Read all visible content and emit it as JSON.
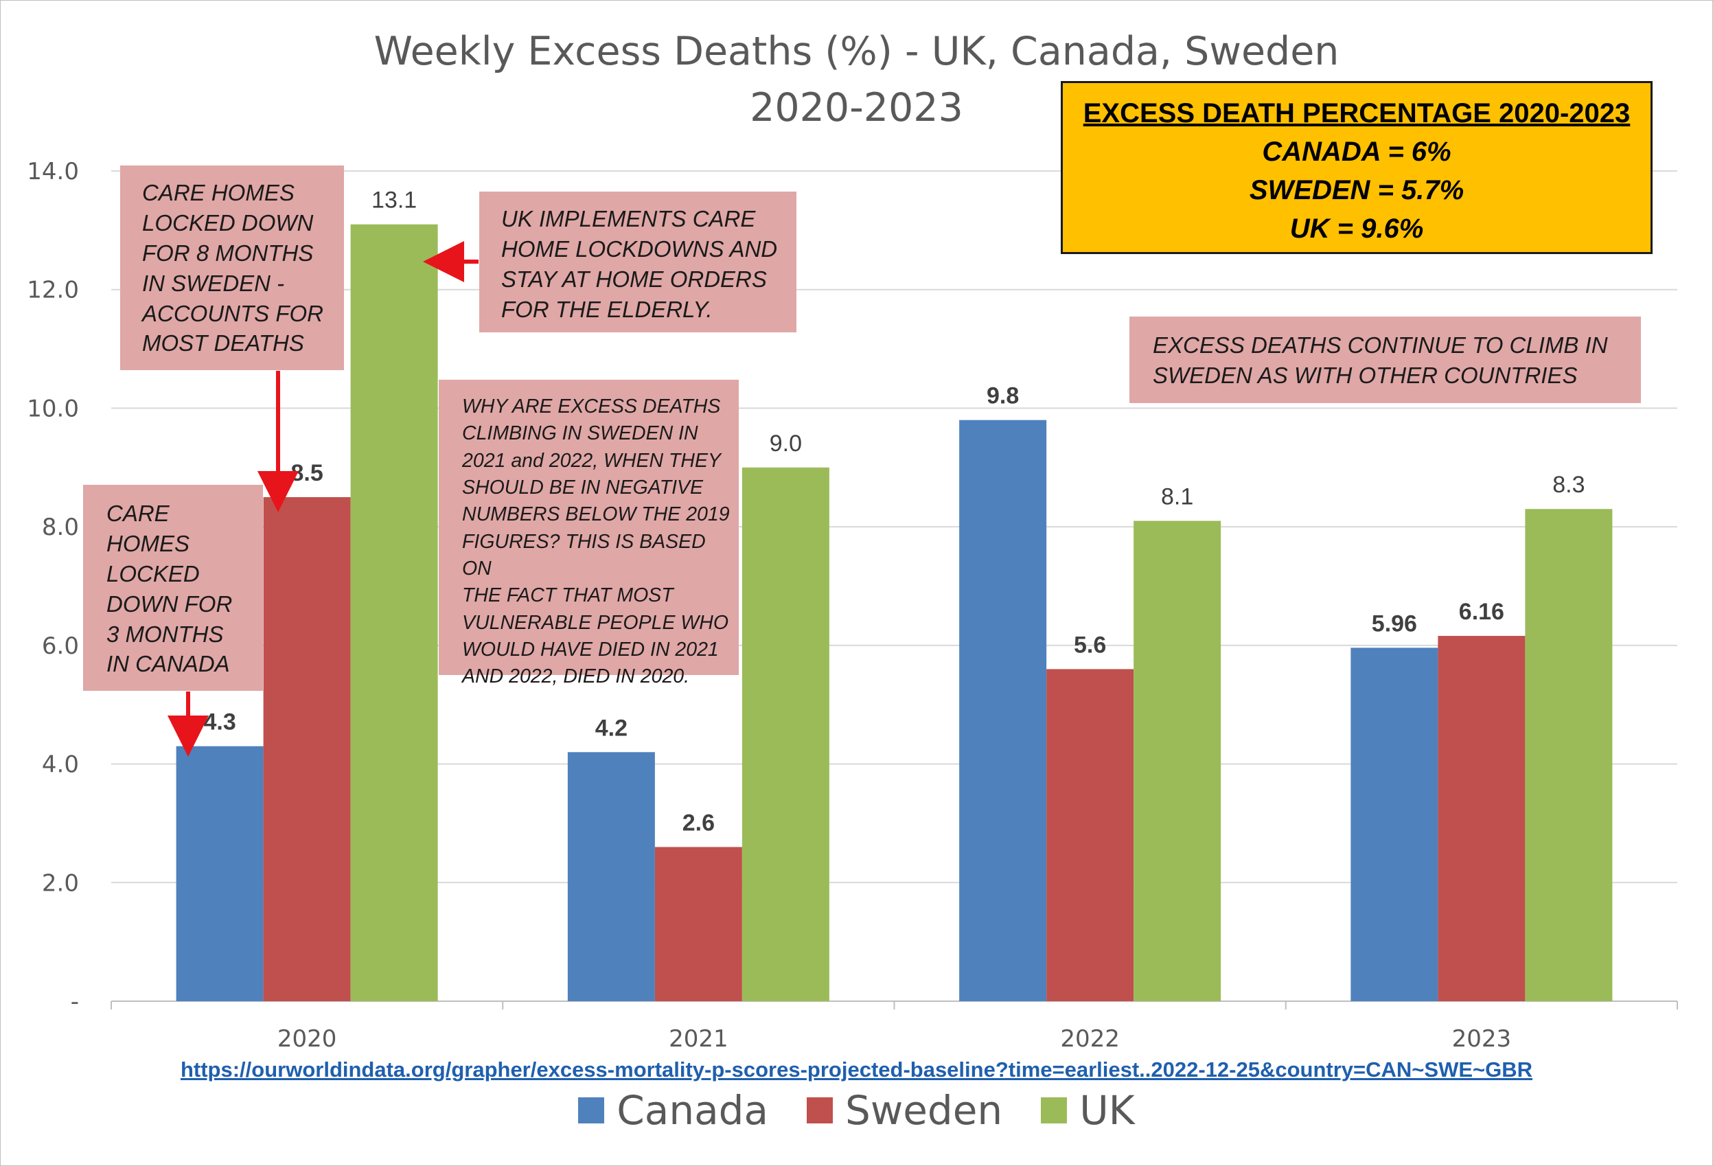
{
  "chart_data": {
    "type": "bar",
    "title": "Weekly Excess Deaths (%) -  UK, Canada, Sweden",
    "subtitle": "2020-2023",
    "categories": [
      "2020",
      "2021",
      "2022",
      "2023"
    ],
    "series": [
      {
        "name": "Canada",
        "color": "#4f81bd",
        "values": [
          4.3,
          4.2,
          9.8,
          5.96
        ],
        "labels": [
          "4.3",
          "4.2",
          "9.8",
          "5.96"
        ],
        "label_bold": true
      },
      {
        "name": "Sweden",
        "color": "#c0504d",
        "values": [
          8.5,
          2.6,
          5.6,
          6.16
        ],
        "labels": [
          "8.5",
          "2.6",
          "5.6",
          "6.16"
        ],
        "label_bold": true
      },
      {
        "name": "UK",
        "color": "#9bbb59",
        "values": [
          13.1,
          9.0,
          8.1,
          8.3
        ],
        "labels": [
          "13.1",
          "9.0",
          "8.1",
          "8.3"
        ],
        "label_bold": false
      }
    ],
    "yticks": [
      "-",
      "2.0",
      "4.0",
      "6.0",
      "8.0",
      "10.0",
      "12.0",
      "14.0"
    ],
    "ylim": [
      0,
      14
    ],
    "grid": true,
    "legend_position": "bottom"
  },
  "annotations": {
    "sweden_care_homes": [
      "CARE HOMES",
      "LOCKED DOWN",
      "FOR 8 MONTHS",
      "IN SWEDEN -",
      "ACCOUNTS FOR",
      "MOST DEATHS"
    ],
    "canada_care_homes": [
      "CARE",
      "HOMES",
      "LOCKED",
      "DOWN FOR",
      "3 MONTHS",
      "IN CANADA"
    ],
    "uk_care_homes": [
      "UK IMPLEMENTS CARE",
      "HOME LOCKDOWNS AND",
      "STAY AT HOME ORDERS",
      "FOR THE ELDERLY."
    ],
    "why_climbing": [
      "WHY ARE EXCESS DEATHS",
      "CLIMBING IN SWEDEN IN",
      "2021 and 2022, WHEN THEY",
      "SHOULD BE IN NEGATIVE",
      "NUMBERS BELOW THE 2019",
      "FIGURES? THIS IS BASED ON",
      "THE FACT THAT MOST",
      "VULNERABLE PEOPLE WHO",
      "WOULD HAVE DIED IN 2021",
      "AND 2022, DIED IN 2020."
    ],
    "continue_climb": [
      "EXCESS DEATHS CONTINUE TO CLIMB IN",
      "SWEDEN AS WITH OTHER COUNTRIES"
    ]
  },
  "summary": {
    "heading": "EXCESS DEATH PERCENTAGE 2020-2023",
    "canada": "CANADA = 6%",
    "sweden": "SWEDEN = 5.7%",
    "uk": "UK = 9.6%"
  },
  "source_url": "https://ourworldindata.org/grapher/excess-mortality-p-scores-projected-baseline?time=earliest..2022-12-25&country=CAN~SWE~GBR",
  "colors": {
    "accent_arrow": "#e8141b",
    "summary_bg": "#ffc000",
    "note_bg": "#dfa7a6"
  }
}
